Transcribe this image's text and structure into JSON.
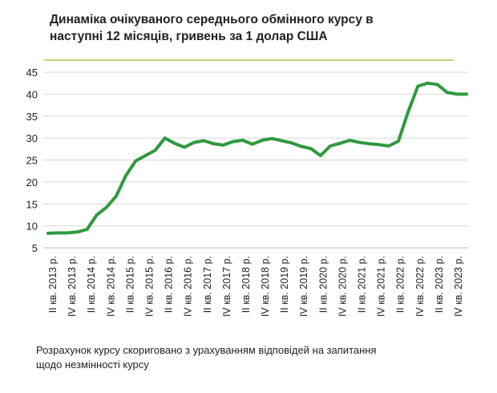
{
  "title_lines": [
    "Динаміка очікуваного середнього обмінного курсу в",
    "наступні 12 місяців, гривень за 1 долар США"
  ],
  "note_lines": [
    "Розрахунок курсу скориговано з урахуванням відповідей на запитання",
    "щодо незмінності курсу"
  ],
  "colors": {
    "line": "#2e9a3e",
    "grid": "#d9d9d9",
    "accent_rule": "#b7d77a"
  },
  "chart_data": {
    "type": "line",
    "title": "Динаміка очікуваного середнього обмінного курсу в наступні 12 місяців, гривень за 1 долар США",
    "xlabel": "",
    "ylabel": "",
    "ylim": [
      5,
      45
    ],
    "yticks": [
      5,
      10,
      15,
      20,
      25,
      30,
      35,
      40,
      45
    ],
    "grid": "horizontal",
    "legend": "none",
    "x_labels": [
      "II кв. 2013 р.",
      "IV кв. 2013 р.",
      "II кв. 2014 р.",
      "IV кв. 2014 р.",
      "II кв. 2015 р.",
      "IV кв. 2015 р.",
      "II кв. 2016 р.",
      "IV кв. 2016 р.",
      "II кв. 2017 р.",
      "IV кв. 2017 р.",
      "II кв. 2018 р.",
      "IV кв. 2018 р.",
      "II кв. 2019 р.",
      "IV кв. 2019 р.",
      "II кв. 2020 р.",
      "IV кв. 2020 р.",
      "II кв. 2021 р.",
      "IV кв. 2021 р.",
      "II кв. 2022 р.",
      "IV кв. 2022 р.",
      "II кв. 2023 р.",
      "IV кв. 2023 р."
    ],
    "series": [
      {
        "values": [
          8.3,
          8.4,
          8.4,
          8.6,
          9.2,
          12.5,
          14.2,
          16.8,
          21.5,
          24.8,
          26.0,
          27.2,
          30.0,
          28.8,
          27.9,
          29.0,
          29.4,
          28.7,
          28.4,
          29.2,
          29.5,
          28.6,
          29.5,
          29.9,
          29.4,
          28.9,
          28.1,
          27.6,
          26.0,
          28.2,
          28.8,
          29.5,
          29.0,
          28.7,
          28.5,
          28.2,
          29.3,
          36.0,
          41.8,
          42.5,
          42.2,
          40.4,
          40.0,
          40.0
        ]
      }
    ]
  }
}
